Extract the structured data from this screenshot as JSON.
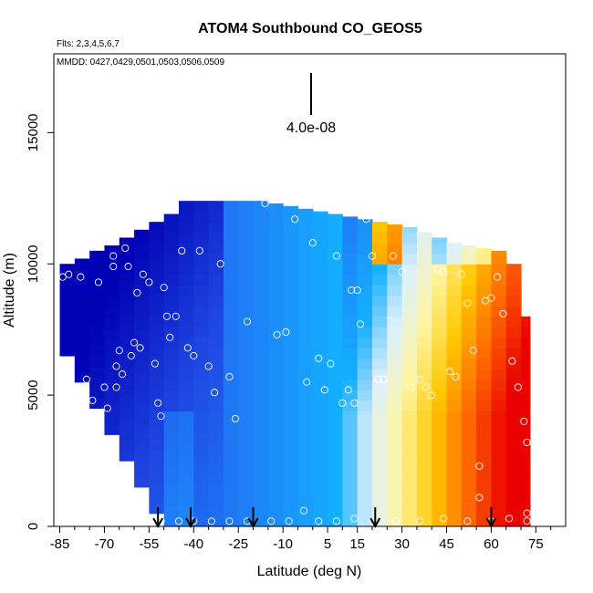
{
  "chart_data": {
    "type": "heatmap",
    "title": "ATOM4 Southbound CO_GEOS5",
    "subtitle": "Flts: 2,3,4,5,6,7",
    "annotation": "MMDD: 0427,0429,0501,0503,0506,0509",
    "scale_label": "4.0e-08",
    "xlabel": "Latitude (deg N)",
    "ylabel": "Altitude (m)",
    "xlim": [
      -87,
      85
    ],
    "ylim": [
      0,
      18000
    ],
    "x_ticks": [
      -85,
      -70,
      -55,
      -40,
      -25,
      -10,
      5,
      15,
      30,
      45,
      60,
      75
    ],
    "x_minor_ticks": [
      -80,
      -75,
      -65,
      -60,
      -50,
      -45,
      -35,
      -30,
      -20,
      -15,
      -5,
      0,
      10,
      20,
      25,
      35,
      40,
      50,
      55,
      65,
      70,
      80
    ],
    "y_ticks": [
      0,
      5000,
      10000,
      15000
    ],
    "grid": false,
    "legend": "none",
    "field": {
      "lat_edges": [
        -85,
        -80,
        -75,
        -70,
        -65,
        -60,
        -55,
        -50,
        -45,
        -40,
        -35,
        -30,
        -25,
        -20,
        -15,
        -10,
        -5,
        0,
        5,
        10,
        15,
        20,
        25,
        30,
        35,
        40,
        45,
        50,
        55,
        60,
        65,
        70,
        73
      ],
      "bottom_alt": [
        6500,
        5500,
        4500,
        3500,
        2500,
        1500,
        500,
        0,
        0,
        0,
        0,
        0,
        0,
        0,
        0,
        0,
        0,
        0,
        0,
        0,
        0,
        0,
        0,
        0,
        0,
        0,
        0,
        0,
        0,
        0,
        0,
        0
      ],
      "top_alt": [
        10000,
        10200,
        10500,
        10700,
        11000,
        11300,
        11600,
        11900,
        12400,
        12400,
        12400,
        12400,
        12400,
        12400,
        12300,
        12200,
        12100,
        12000,
        11900,
        11800,
        11700,
        11600,
        11500,
        11400,
        11200,
        11000,
        10800,
        10700,
        10600,
        10500,
        10000,
        8000
      ],
      "description": "CO concentration: low (blue) at southern high latitudes, rising (yellow-red) at northern mid/high latitudes"
    },
    "flight_track_points": [
      {
        "lat": -86,
        "alt": 6300
      },
      {
        "lat": -84,
        "alt": 9500
      },
      {
        "lat": -82,
        "alt": 9600
      },
      {
        "lat": -78,
        "alt": 9500
      },
      {
        "lat": -76,
        "alt": 5600
      },
      {
        "lat": -74,
        "alt": 4800
      },
      {
        "lat": -72,
        "alt": 9300
      },
      {
        "lat": -70,
        "alt": 5300
      },
      {
        "lat": -69,
        "alt": 4500
      },
      {
        "lat": -67,
        "alt": 10300
      },
      {
        "lat": -67,
        "alt": 9900
      },
      {
        "lat": -66,
        "alt": 6100
      },
      {
        "lat": -66,
        "alt": 5300
      },
      {
        "lat": -65,
        "alt": 6700
      },
      {
        "lat": -64,
        "alt": 5800
      },
      {
        "lat": -63,
        "alt": 10600
      },
      {
        "lat": -62,
        "alt": 9900
      },
      {
        "lat": -61,
        "alt": 6500
      },
      {
        "lat": -60,
        "alt": 7000
      },
      {
        "lat": -59,
        "alt": 8900
      },
      {
        "lat": -58,
        "alt": 6800
      },
      {
        "lat": -57,
        "alt": 9600
      },
      {
        "lat": -55,
        "alt": 9300
      },
      {
        "lat": -53,
        "alt": 6200
      },
      {
        "lat": -52,
        "alt": 4700
      },
      {
        "lat": -51,
        "alt": 4200
      },
      {
        "lat": -50,
        "alt": 9100
      },
      {
        "lat": -49,
        "alt": 8000
      },
      {
        "lat": -48,
        "alt": 7200
      },
      {
        "lat": -46,
        "alt": 8000
      },
      {
        "lat": -44,
        "alt": 10500
      },
      {
        "lat": -42,
        "alt": 6800
      },
      {
        "lat": -40,
        "alt": 6500
      },
      {
        "lat": -38,
        "alt": 10500
      },
      {
        "lat": -35,
        "alt": 6100
      },
      {
        "lat": -33,
        "alt": 5100
      },
      {
        "lat": -31,
        "alt": 10000
      },
      {
        "lat": -28,
        "alt": 5700
      },
      {
        "lat": -26,
        "alt": 4100
      },
      {
        "lat": -22,
        "alt": 7800
      },
      {
        "lat": -16,
        "alt": 12300
      },
      {
        "lat": -12,
        "alt": 7300
      },
      {
        "lat": -9,
        "alt": 7400
      },
      {
        "lat": -6,
        "alt": 11700
      },
      {
        "lat": -2,
        "alt": 5500
      },
      {
        "lat": 0,
        "alt": 10800
      },
      {
        "lat": 2,
        "alt": 6400
      },
      {
        "lat": 4,
        "alt": 5200
      },
      {
        "lat": 6,
        "alt": 6200
      },
      {
        "lat": 8,
        "alt": 10300
      },
      {
        "lat": 10,
        "alt": 4700
      },
      {
        "lat": 12,
        "alt": 5200
      },
      {
        "lat": 13,
        "alt": 9000
      },
      {
        "lat": 14,
        "alt": 4700
      },
      {
        "lat": 15,
        "alt": 9000
      },
      {
        "lat": 16,
        "alt": 7700
      },
      {
        "lat": 18,
        "alt": 11700
      },
      {
        "lat": 20,
        "alt": 10300
      },
      {
        "lat": 22,
        "alt": 5600
      },
      {
        "lat": 24,
        "alt": 5600
      },
      {
        "lat": 27,
        "alt": 10300
      },
      {
        "lat": 30,
        "alt": 9700
      },
      {
        "lat": 33,
        "alt": 5300
      },
      {
        "lat": 36,
        "alt": 5600
      },
      {
        "lat": 38,
        "alt": 5300
      },
      {
        "lat": 40,
        "alt": 5000
      },
      {
        "lat": 42,
        "alt": 9800
      },
      {
        "lat": 44,
        "alt": 9700
      },
      {
        "lat": 46,
        "alt": 5900
      },
      {
        "lat": 48,
        "alt": 5700
      },
      {
        "lat": 50,
        "alt": 9600
      },
      {
        "lat": 52,
        "alt": 8500
      },
      {
        "lat": 54,
        "alt": 6700
      },
      {
        "lat": 56,
        "alt": 2300
      },
      {
        "lat": 56,
        "alt": 1100
      },
      {
        "lat": 58,
        "alt": 8600
      },
      {
        "lat": 60,
        "alt": 8700
      },
      {
        "lat": 62,
        "alt": 9500
      },
      {
        "lat": 64,
        "alt": 8100
      },
      {
        "lat": 67,
        "alt": 6300
      },
      {
        "lat": 69,
        "alt": 5300
      },
      {
        "lat": 71,
        "alt": 4000
      },
      {
        "lat": 72,
        "alt": 3200
      },
      {
        "lat": 72,
        "alt": 500
      },
      {
        "lat": 72,
        "alt": 200
      },
      {
        "lat": -76,
        "alt": 200
      },
      {
        "lat": -70,
        "alt": 200
      },
      {
        "lat": -64,
        "alt": 300
      },
      {
        "lat": -57,
        "alt": 300
      },
      {
        "lat": -51,
        "alt": 200
      },
      {
        "lat": -45,
        "alt": 200
      },
      {
        "lat": -40,
        "alt": 200
      },
      {
        "lat": -34,
        "alt": 200
      },
      {
        "lat": -28,
        "alt": 200
      },
      {
        "lat": -22,
        "alt": 200
      },
      {
        "lat": -14,
        "alt": 200
      },
      {
        "lat": -8,
        "alt": 200
      },
      {
        "lat": -3,
        "alt": 600
      },
      {
        "lat": 2,
        "alt": 200
      },
      {
        "lat": 8,
        "alt": 200
      },
      {
        "lat": 14,
        "alt": 300
      },
      {
        "lat": 20,
        "alt": 200
      },
      {
        "lat": 28,
        "alt": 200
      },
      {
        "lat": 36,
        "alt": 200
      },
      {
        "lat": 44,
        "alt": 300
      },
      {
        "lat": 52,
        "alt": 200
      },
      {
        "lat": 60,
        "alt": 200
      },
      {
        "lat": 66,
        "alt": 300
      }
    ],
    "profile_arrows_lat": [
      -52,
      -41,
      -20,
      21,
      60
    ]
  }
}
